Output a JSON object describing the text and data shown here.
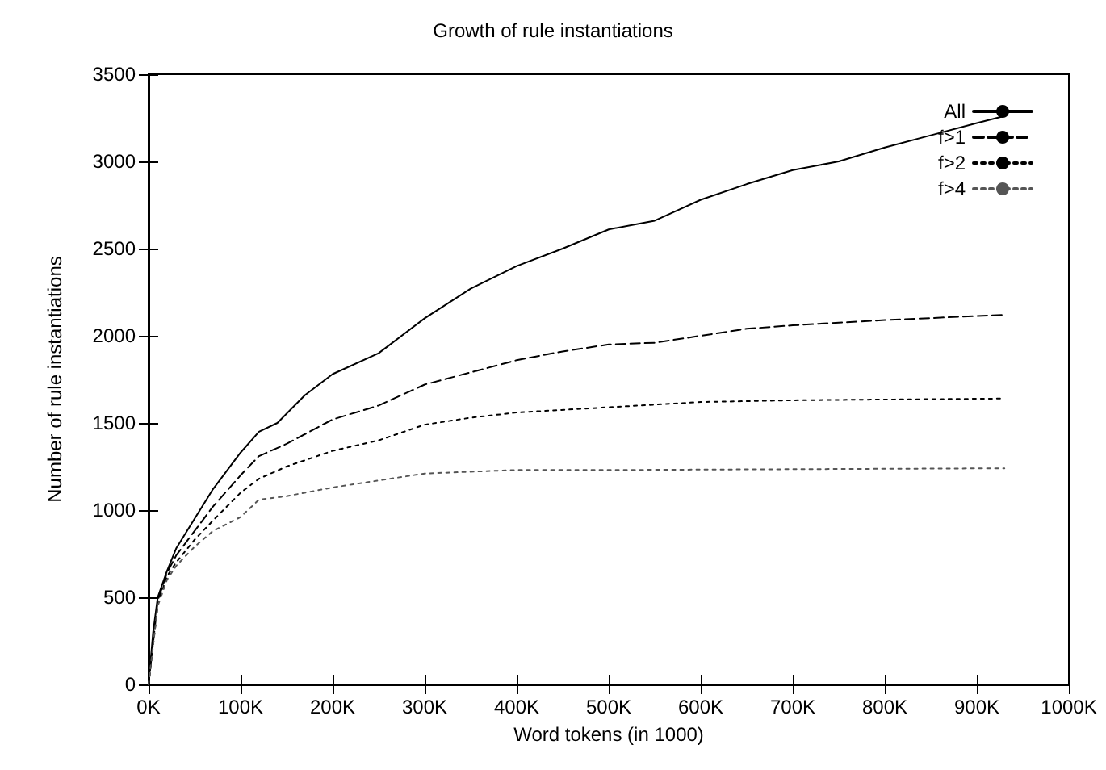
{
  "chart_data": {
    "type": "line",
    "title": "Growth of rule instantiations",
    "xlabel": "Word tokens (in 1000)",
    "ylabel": "Number of rule instantiations",
    "xlim": [
      0,
      1000000
    ],
    "xticks": [
      {
        "value": 0,
        "label": "0K"
      },
      {
        "value": 100000,
        "label": "100K"
      },
      {
        "value": 200000,
        "label": "200K"
      },
      {
        "value": 300000,
        "label": "300K"
      },
      {
        "value": 400000,
        "label": "400K"
      },
      {
        "value": 500000,
        "label": "500K"
      },
      {
        "value": 600000,
        "label": "600K"
      },
      {
        "value": 700000,
        "label": "700K"
      },
      {
        "value": 800000,
        "label": "800K"
      },
      {
        "value": 900000,
        "label": "900K"
      },
      {
        "value": 1000000,
        "label": "1000K"
      }
    ],
    "ylim": [
      0,
      3500
    ],
    "yticks": [
      0,
      500,
      1000,
      1500,
      2000,
      2500,
      3000,
      3500
    ],
    "grid": false,
    "legend": "top right",
    "marker": "none",
    "series": [
      {
        "name": "All",
        "color": "#000000",
        "line_style": "solid",
        "x": [
          0,
          5000,
          10000,
          20000,
          30000,
          50000,
          70000,
          100000,
          120000,
          140000,
          170000,
          200000,
          250000,
          300000,
          350000,
          400000,
          450000,
          500000,
          550000,
          600000,
          650000,
          700000,
          750000,
          800000,
          850000,
          900000,
          930000
        ],
        "values": [
          0,
          300,
          500,
          650,
          780,
          950,
          1120,
          1330,
          1450,
          1500,
          1660,
          1780,
          1900,
          2100,
          2270,
          2400,
          2500,
          2610,
          2660,
          2780,
          2870,
          2950,
          3000,
          3080,
          3150,
          3220,
          3260
        ]
      },
      {
        "name": "f>1",
        "color": "#000000",
        "line_style": "dashed",
        "x": [
          0,
          10000,
          20000,
          30000,
          50000,
          70000,
          100000,
          120000,
          150000,
          200000,
          250000,
          300000,
          350000,
          400000,
          450000,
          500000,
          550000,
          600000,
          650000,
          700000,
          800000,
          930000
        ],
        "values": [
          0,
          480,
          640,
          740,
          880,
          1020,
          1200,
          1310,
          1380,
          1520,
          1600,
          1720,
          1790,
          1860,
          1910,
          1950,
          1960,
          2000,
          2040,
          2060,
          2090,
          2120
        ]
      },
      {
        "name": "f>2",
        "color": "#000000",
        "line_style": "dotted",
        "x": [
          0,
          10000,
          20000,
          30000,
          50000,
          70000,
          100000,
          120000,
          150000,
          200000,
          250000,
          300000,
          350000,
          400000,
          500000,
          600000,
          700000,
          930000
        ],
        "values": [
          0,
          460,
          620,
          700,
          830,
          940,
          1100,
          1180,
          1250,
          1340,
          1400,
          1490,
          1530,
          1560,
          1590,
          1620,
          1630,
          1640
        ]
      },
      {
        "name": "f>4",
        "color": "#555555",
        "line_style": "dotted",
        "x": [
          0,
          10000,
          20000,
          30000,
          50000,
          70000,
          100000,
          120000,
          150000,
          200000,
          250000,
          300000,
          400000,
          500000,
          930000
        ],
        "values": [
          0,
          450,
          600,
          680,
          790,
          880,
          960,
          1060,
          1080,
          1130,
          1170,
          1210,
          1230,
          1230,
          1240
        ]
      }
    ]
  }
}
